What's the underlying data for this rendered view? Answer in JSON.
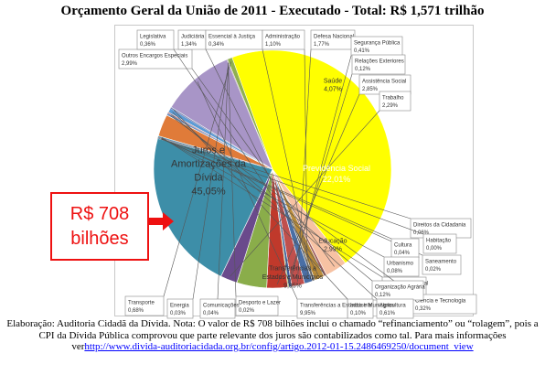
{
  "title": "Orçamento Geral da União de 2011 - Executado - Total: R$ 1,571 trilhão",
  "callout": {
    "line1": "R$ 708",
    "line2": "bilhões"
  },
  "footer": {
    "text": "Elaboração: Auditoria Cidadã da Dívida. Nota: O valor de R$ 708 bilhões inclui o chamado “refinanciamento” ou “rolagem”, pois a CPI da Dívida Pública comprovou que parte relevante dos juros são contabilizados como tal. Para mais informações ver",
    "link": "http://www.divida-auditoriacidada.org.br/config/artigo.2012-01-15.2486469250/document_view"
  },
  "chart_data": {
    "type": "pie",
    "title": "Orçamento Geral da União de 2011 - Executado - Total: R$ 1,571 trilhão",
    "unit": "%",
    "slices": [
      {
        "name": "Juros e Amortizações da Dívida",
        "value": 45.05,
        "label": "45,05%",
        "color": "#ffff00"
      },
      {
        "name": "Outros Encargos Especiais",
        "value": 2.99,
        "label": "2,99%",
        "color": "#f7c2a3"
      },
      {
        "name": "Legislativa",
        "value": 0.36,
        "label": "0,36%",
        "color": "#9c5a5a"
      },
      {
        "name": "Judiciária",
        "value": 1.34,
        "label": "1,34%",
        "color": "#b98b3a"
      },
      {
        "name": "Essencial à Justiça",
        "value": 0.34,
        "label": "0,34%",
        "color": "#6b6b6b"
      },
      {
        "name": "Administração",
        "value": 1.1,
        "label": "1,10%",
        "color": "#4a6fa5"
      },
      {
        "name": "Defesa Nacional",
        "value": 1.77,
        "label": "1,77%",
        "color": "#c0504d"
      },
      {
        "name": "Segurança Pública",
        "value": 0.41,
        "label": "0,41%",
        "color": "#3f5f9f"
      },
      {
        "name": "Relações Exteriores",
        "value": 0.12,
        "label": "0,12%",
        "color": "#9bbb59"
      },
      {
        "name": "Assistência Social",
        "value": 2.85,
        "label": "2,85%",
        "color": "#c0392b"
      },
      {
        "name": "Saúde",
        "value": 4.07,
        "label": "4,07%",
        "color": "#8aad4a"
      },
      {
        "name": "Trabalho",
        "value": 2.29,
        "label": "2,29%",
        "color": "#6a4a8c"
      },
      {
        "name": "Previdência Social",
        "value": 22.01,
        "label": "22,01%",
        "color": "#3d8ea8"
      },
      {
        "name": "Direitos da Cidadania",
        "value": 0.06,
        "label": "0,06%",
        "color": "#2e6d8e"
      },
      {
        "name": "Habitação",
        "value": 0.0,
        "label": "0,00%",
        "color": "#5a7fb0"
      },
      {
        "name": "Saneamento",
        "value": 0.02,
        "label": "0,02%",
        "color": "#a05050"
      },
      {
        "name": "Cultura",
        "value": 0.04,
        "label": "0,04%",
        "color": "#a8c070"
      },
      {
        "name": "Urbanismo",
        "value": 0.08,
        "label": "0,08%",
        "color": "#7a5a9a"
      },
      {
        "name": "Gestão Ambiental",
        "value": 0.15,
        "label": "0,15%",
        "color": "#4fa0b8"
      },
      {
        "name": "Educação",
        "value": 2.99,
        "label": "2,99%",
        "color": "#e07b39"
      },
      {
        "name": "Ciência e Tecnologia",
        "value": 0.32,
        "label": "0,32%",
        "color": "#6f8fc0"
      },
      {
        "name": "Organização Agrária",
        "value": 0.12,
        "label": "0,12%",
        "color": "#c06060"
      },
      {
        "name": "Agricultura",
        "value": 0.61,
        "label": "0,61%",
        "color": "#5b9bd5"
      },
      {
        "name": "Indústria",
        "value": 0.1,
        "label": "0,10%",
        "color": "#8060a0"
      },
      {
        "name": "Comércio e Serviços",
        "value": 0.08,
        "label": "0,08%",
        "color": "#40a0b0"
      },
      {
        "name": "Transferências a Estados e Municípios",
        "value": 9.95,
        "label": "9,95%",
        "color": "#a895c7"
      },
      {
        "name": "Desporto e Lazer",
        "value": 0.02,
        "label": "0,02%",
        "color": "#f09050"
      },
      {
        "name": "Comunicações",
        "value": 0.04,
        "label": "0,04%",
        "color": "#4070b0"
      },
      {
        "name": "Energia",
        "value": 0.03,
        "label": "0,03%",
        "color": "#c05050"
      },
      {
        "name": "Transporte",
        "value": 0.68,
        "label": "0,68%",
        "color": "#90b050"
      }
    ]
  }
}
